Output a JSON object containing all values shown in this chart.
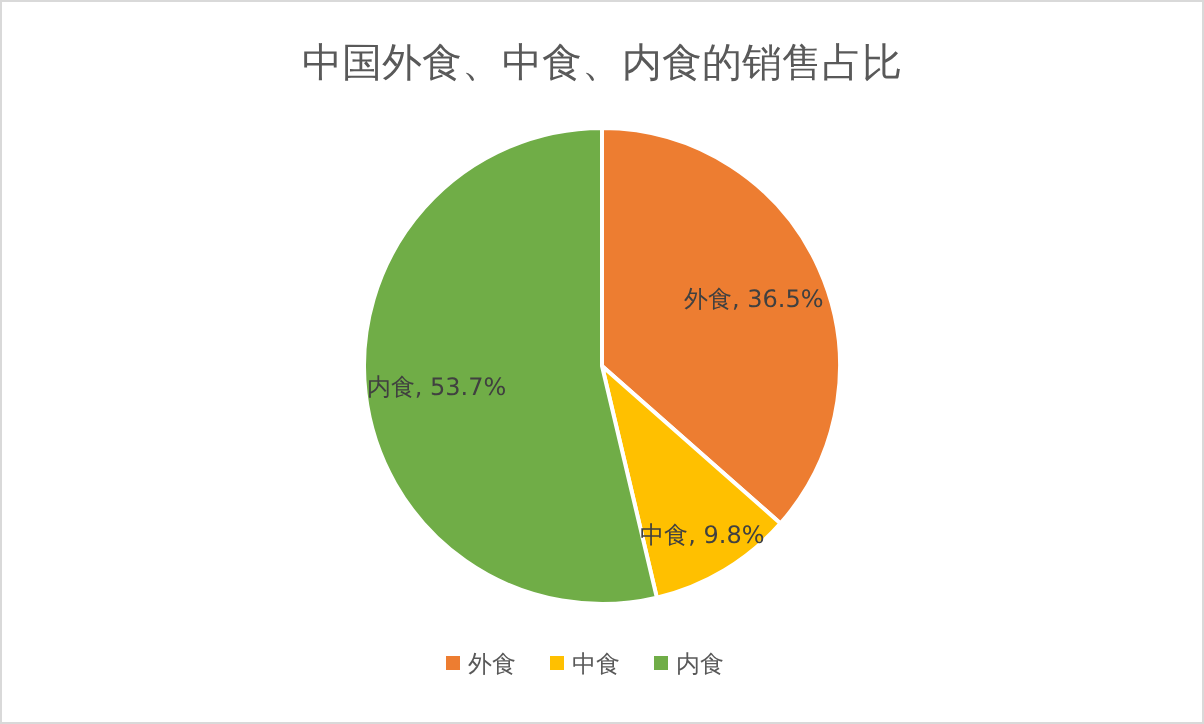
{
  "chart_data": {
    "type": "pie",
    "title": "中国外食、中食、内食的销售占比",
    "categories": [
      "外食",
      "中食",
      "内食"
    ],
    "values": [
      36.5,
      9.8,
      53.7
    ],
    "colors": [
      "#ed7d31",
      "#ffc000",
      "#70ad47"
    ],
    "value_labels": [
      "外食, 36.5%",
      "中食, 9.8%",
      "内食, 53.7%"
    ],
    "legend": "bottom"
  }
}
